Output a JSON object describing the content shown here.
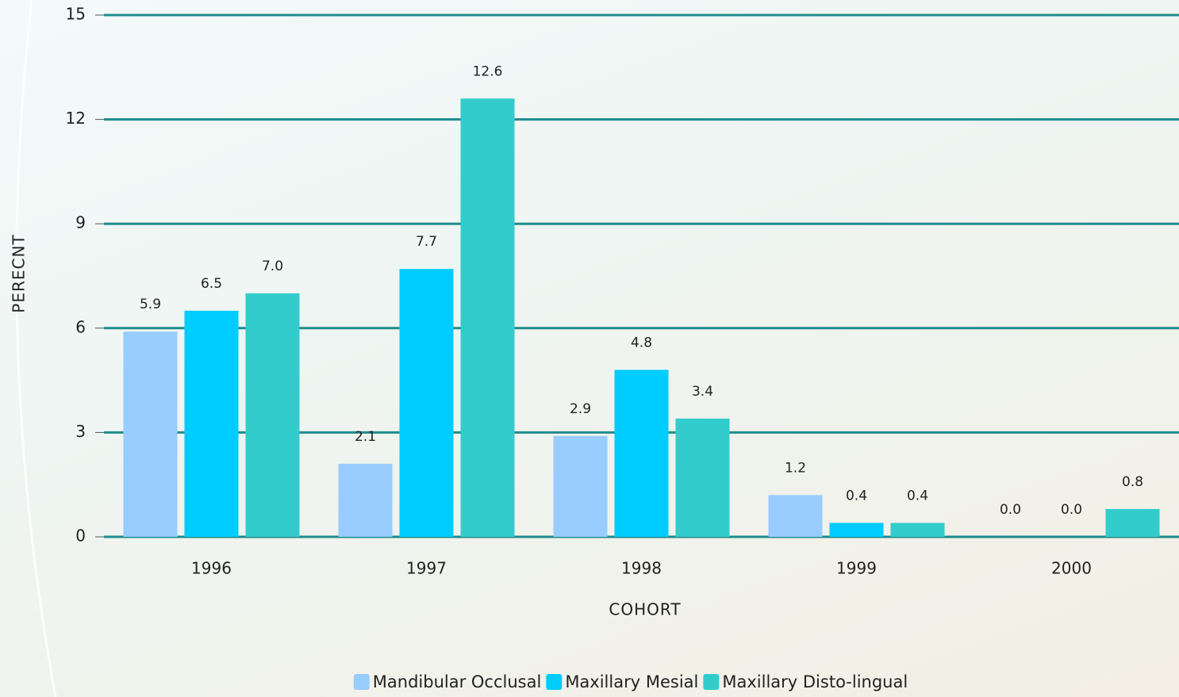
{
  "chart_data": {
    "type": "bar",
    "categories": [
      "1996",
      "1997",
      "1998",
      "1999",
      "2000"
    ],
    "series": [
      {
        "name": "Mandibular Occlusal",
        "color": "#99ccff",
        "values": [
          5.9,
          2.1,
          2.9,
          1.2,
          0
        ],
        "value_labels": [
          "5.9",
          "2.1",
          "2.9",
          "1.2",
          "0.0"
        ]
      },
      {
        "name": "Maxillary Mesial",
        "color": "#00ccff",
        "values": [
          6.5,
          7.7,
          4.8,
          0.4,
          0
        ],
        "value_labels": [
          "6.5",
          "7.7",
          "4.8",
          "0.4",
          "0.0"
        ]
      },
      {
        "name": "Maxillary Disto-lingual",
        "color": "#33cccc",
        "values": [
          7,
          12.6,
          3.4,
          0.4,
          0.8
        ],
        "value_labels": [
          "7.0",
          "12.6",
          "3.4",
          "0.4",
          "0.8"
        ]
      }
    ],
    "xlabel": "COHORT",
    "ylabel": "PERECNT",
    "ylim": [
      0,
      15
    ],
    "yticks": [
      0,
      3,
      6,
      9,
      12,
      15
    ],
    "grid": true,
    "legend": "bottom"
  }
}
